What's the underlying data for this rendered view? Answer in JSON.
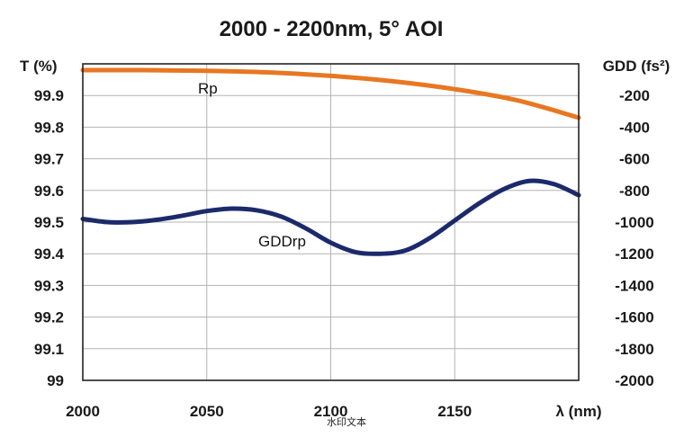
{
  "chart_data": {
    "type": "line",
    "title": "2000 - 2200nm, 5° AOI",
    "xlabel": "λ (nm)",
    "ylabel_left": "T (%)",
    "ylabel_right": "GDD (fs²)",
    "xlim": [
      2000,
      2200
    ],
    "ylim_left": [
      99.0,
      100.0
    ],
    "ylim_right": [
      -2000,
      0
    ],
    "x_ticks": [
      "2000",
      "2050",
      "2100",
      "2150"
    ],
    "y_left_ticks": [
      "99",
      "99.1",
      "99.2",
      "99.3",
      "99.4",
      "99.5",
      "99.6",
      "99.7",
      "99.8",
      "99.9"
    ],
    "y_right_ticks": [
      "-200",
      "-400",
      "-600",
      "-800",
      "-1000",
      "-1200",
      "-1400",
      "-1600",
      "-1800",
      "-2000"
    ],
    "grid": true,
    "series": [
      {
        "name": "Rp",
        "axis": "left",
        "color": "#e87722",
        "x": [
          2000,
          2025,
          2050,
          2075,
          2100,
          2125,
          2150,
          2175,
          2200
        ],
        "y": [
          99.98,
          99.98,
          99.978,
          99.973,
          99.962,
          99.945,
          99.92,
          99.885,
          99.83
        ]
      },
      {
        "name": "GDDrp",
        "axis": "right",
        "color": "#1c2a6b",
        "x": [
          2000,
          2010,
          2020,
          2030,
          2040,
          2050,
          2060,
          2070,
          2080,
          2090,
          2100,
          2110,
          2120,
          2130,
          2140,
          2150,
          2160,
          2170,
          2180,
          2190,
          2200
        ],
        "y": [
          -980,
          -1000,
          -1000,
          -985,
          -960,
          -930,
          -915,
          -925,
          -965,
          -1040,
          -1130,
          -1190,
          -1200,
          -1180,
          -1100,
          -990,
          -880,
          -790,
          -740,
          -760,
          -830
        ]
      }
    ]
  },
  "watermark": "水印文本"
}
